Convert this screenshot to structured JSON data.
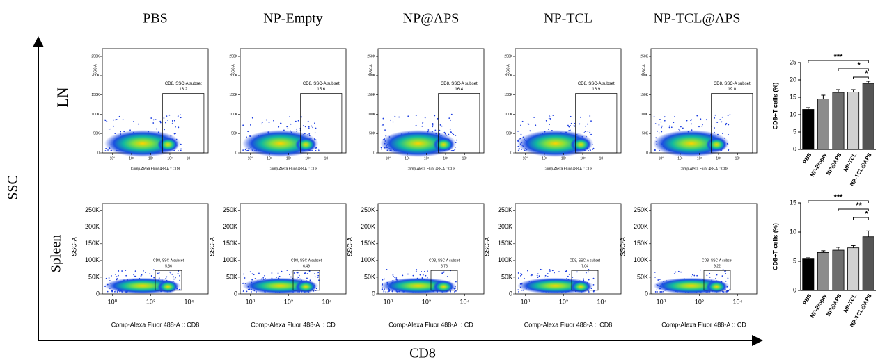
{
  "column_titles": [
    "PBS",
    "NP-Empty",
    "NP@APS",
    "NP-TCL",
    "NP-TCL@APS"
  ],
  "y_axis_label": "SSC",
  "x_axis_label": "CD8",
  "flow_cytometry": {
    "rows": [
      {
        "label": "LN",
        "y_label": "SSC-A",
        "ylim": [
          0,
          270000
        ],
        "yticks": [
          0,
          {
            "value": 50000,
            "label": "50K"
          },
          {
            "value": 100000,
            "label": "100K"
          },
          {
            "value": 150000,
            "label": "150K"
          },
          {
            "value": 200000,
            "label": "200K"
          },
          {
            "value": 250000,
            "label": "250K"
          }
        ],
        "xlim": [
          0.3,
          100000
        ],
        "xscale": "log",
        "xticks": [
          {
            "value": 1,
            "label": "10⁰"
          },
          {
            "value": 10,
            "label": "10¹"
          },
          {
            "value": 100,
            "label": "10²"
          },
          {
            "value": 1000,
            "label": "10³"
          },
          {
            "value": 10000,
            "label": "10⁴"
          }
        ],
        "gate_label": "CD8, SSC-A subset",
        "gate_values": [
          13.2,
          15.6,
          16.4,
          16.9,
          19
        ],
        "gate_value_labels": [
          "13.2",
          "15.6",
          "16.4",
          "16.9",
          "19.0"
        ],
        "x_labels": [
          "Comp-Alexa Fluor 488-A :: CD8",
          "Comp-Alexa Fluor 488-A :: CD8",
          "Comp-Alexa Fluor 488-A :: CD8",
          "Comp-Alexa Fluor 488-A :: CD8",
          "Comp-Alexa Fluor 488-A :: CD8"
        ]
      },
      {
        "label": "Spleen",
        "y_label": "SSC-A",
        "ylim": [
          0,
          270000
        ],
        "yticks": [
          0,
          {
            "value": 50000,
            "label": "50K"
          },
          {
            "value": 100000,
            "label": "100K"
          },
          {
            "value": 150000,
            "label": "150K"
          },
          {
            "value": 200000,
            "label": "200K"
          },
          {
            "value": 250000,
            "label": "250K"
          }
        ],
        "xlim": [
          0.3,
          100000
        ],
        "xscale": "log",
        "xticks": [
          {
            "value": 1,
            "label": "10⁰"
          },
          {
            "value": 100,
            "label": "10²"
          },
          {
            "value": 10000,
            "label": "10⁴"
          }
        ],
        "gate_label": "CD8, SSC-A subset",
        "gate_values": [
          5.36,
          6.49,
          6.76,
          7.04,
          9.22
        ],
        "x_labels": [
          "Comp-Alexa Fluor 488-A :: CD8",
          "Comp-Alexa Fluor 488-A :: CD",
          "Comp-Alexa Fluor 488-A :: CD",
          "Comp-Alexa Fluor 488-A :: CD8",
          "Comp-Alexa Fluor 488-A :: CD"
        ]
      }
    ]
  },
  "chart_data": [
    {
      "type": "bar",
      "y_label": "CD8+T cells (%)",
      "categories": [
        "PBS",
        "NP-Empty",
        "NP@APS",
        "NP-TCL",
        "NP-TCL@APS"
      ],
      "values": [
        11.5,
        14.5,
        16.4,
        16.5,
        19
      ],
      "errors": [
        0.5,
        1.1,
        0.8,
        0.7,
        0.6
      ],
      "colors": [
        "#000000",
        "#8c8c8c",
        "#6e6e6e",
        "#d0d0d0",
        "#555555"
      ],
      "ylim": [
        0,
        25
      ],
      "yticks": [
        0,
        5,
        10,
        15,
        20,
        25
      ],
      "significance": [
        {
          "label": "***",
          "from": "PBS",
          "to": "NP-TCL@APS"
        },
        {
          "label": "*",
          "from": "NP@APS",
          "to": "NP-TCL@APS"
        },
        {
          "label": "*",
          "from": "NP-TCL",
          "to": "NP-TCL@APS"
        }
      ]
    },
    {
      "type": "bar",
      "y_label": "CD8+T cells (%)",
      "categories": [
        "PBS",
        "NP-Empty",
        "NP@APS",
        "NP-TCL",
        "NP-TCL@APS"
      ],
      "values": [
        5.4,
        6.5,
        6.9,
        7.3,
        9.2
      ],
      "errors": [
        0.2,
        0.3,
        0.5,
        0.4,
        1
      ],
      "colors": [
        "#000000",
        "#8c8c8c",
        "#6e6e6e",
        "#d0d0d0",
        "#555555"
      ],
      "ylim": [
        0,
        15
      ],
      "yticks": [
        0,
        5,
        10,
        15
      ],
      "significance": [
        {
          "label": "***",
          "from": "PBS",
          "to": "NP-TCL@APS"
        },
        {
          "label": "**",
          "from": "NP@APS",
          "to": "NP-TCL@APS"
        },
        {
          "label": "*",
          "from": "NP-TCL",
          "to": "NP-TCL@APS"
        }
      ]
    }
  ]
}
